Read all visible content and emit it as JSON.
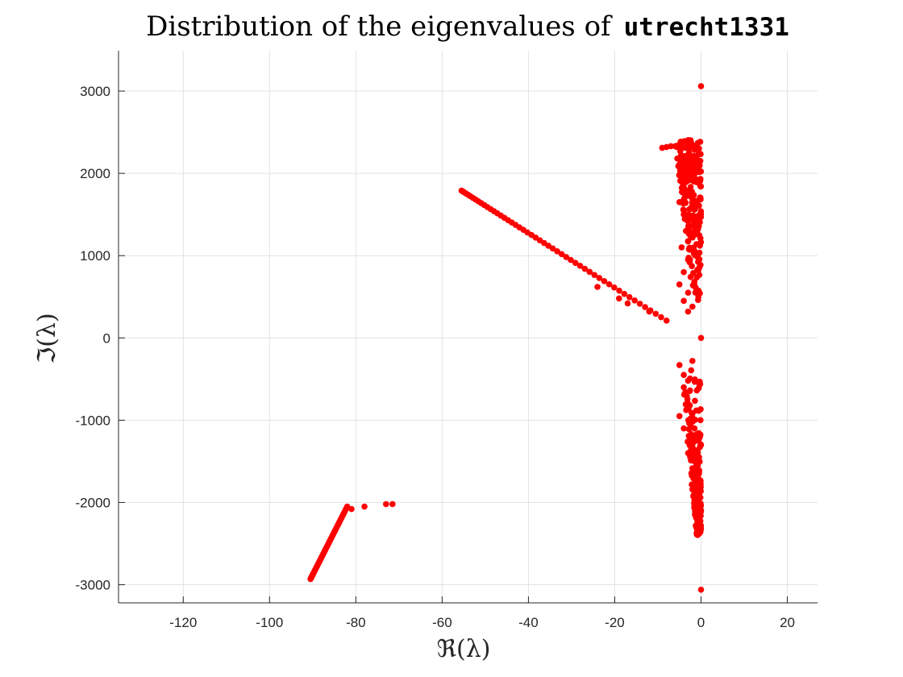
{
  "chart_data": {
    "type": "scatter",
    "title_prefix": "Distribution of the eigenvalues of",
    "title_matrix": "utrecht1331",
    "xlabel": "ℜ(λ)",
    "ylabel": "ℑ(λ)",
    "xlim": [
      -135,
      27
    ],
    "ylim": [
      -3220,
      3490
    ],
    "xticks": [
      -120,
      -100,
      -80,
      -60,
      -40,
      -20,
      0,
      20
    ],
    "yticks": [
      -3000,
      -2000,
      -1000,
      0,
      1000,
      2000,
      3000
    ],
    "grid": true,
    "marker_color": "#ff0000",
    "arms": [
      {
        "name": "upper-left arm",
        "from": [
          -55.5,
          1790
        ],
        "to": [
          -8,
          210
        ],
        "n": 52
      },
      {
        "name": "lower-left arm",
        "from": [
          -90.5,
          -2930
        ],
        "to": [
          -82,
          -2050
        ],
        "n": 60
      },
      {
        "name": "lower-left arm tail",
        "points": [
          [
            -81,
            -2080
          ],
          [
            -78,
            -2050
          ],
          [
            -73,
            -2020
          ],
          [
            -71.5,
            -2020
          ]
        ]
      }
    ],
    "upper_band": {
      "y_range": [
        300,
        2410
      ],
      "x_width_top": 6,
      "x_width_bottom": 1.5,
      "n": 260
    },
    "lower_band": {
      "y_range": [
        -2400,
        -300
      ],
      "x_width_bottom": 1,
      "x_width_top": 5,
      "n": 260
    },
    "extra_points": [
      [
        0,
        3060
      ],
      [
        0,
        -3060
      ],
      [
        0,
        0
      ],
      [
        -9,
        2310
      ],
      [
        -8,
        2320
      ],
      [
        -7,
        2330
      ],
      [
        -6,
        2330
      ],
      [
        -5,
        2320
      ],
      [
        -5,
        1650
      ],
      [
        -4,
        1500
      ],
      [
        -3.5,
        1300
      ],
      [
        -4.5,
        1100
      ],
      [
        -3,
        950
      ],
      [
        -4,
        800
      ],
      [
        -5,
        650
      ],
      [
        -3,
        550
      ],
      [
        -4,
        450
      ],
      [
        -2,
        380
      ],
      [
        -3,
        320
      ],
      [
        -4,
        -450
      ],
      [
        -5,
        -330
      ],
      [
        -3,
        -520
      ],
      [
        -2,
        -280
      ],
      [
        -4,
        -600
      ],
      [
        -3,
        -800
      ],
      [
        -5,
        -950
      ],
      [
        -4,
        -1100
      ],
      [
        -2,
        -1200
      ],
      [
        -3,
        -1400
      ],
      [
        -12,
        320
      ],
      [
        -17,
        420
      ],
      [
        -19,
        480
      ],
      [
        -24,
        620
      ]
    ]
  }
}
